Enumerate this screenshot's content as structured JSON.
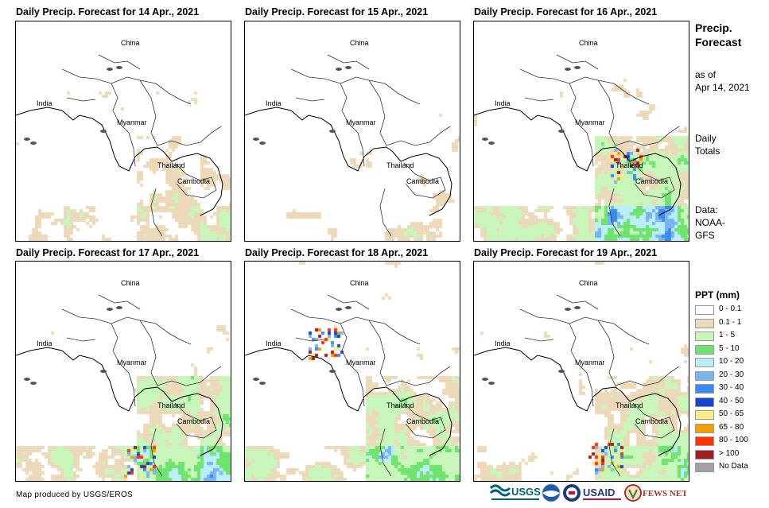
{
  "panels": [
    {
      "title": "Daily Precip. Forecast for 14 Apr., 2021",
      "seed": 11,
      "wet": 0.1,
      "hot": null
    },
    {
      "title": "Daily Precip. Forecast for 15 Apr., 2021",
      "seed": 23,
      "wet": 0.05,
      "hot": null
    },
    {
      "title": "Daily Precip. Forecast for 16 Apr., 2021",
      "seed": 37,
      "wet": 0.25,
      "hot": "thailand"
    },
    {
      "title": "Daily Precip. Forecast for 17 Apr., 2021",
      "seed": 41,
      "wet": 0.2,
      "hot": "south"
    },
    {
      "title": "Daily Precip. Forecast for 18 Apr., 2021",
      "seed": 53,
      "wet": 0.2,
      "hot": "north"
    },
    {
      "title": "Daily Precip. Forecast for 19 Apr., 2021",
      "seed": 67,
      "wet": 0.15,
      "hot": "malaysia"
    }
  ],
  "map_labels": {
    "china": "China",
    "india": "India",
    "myanmar": "Myanmar",
    "thailand": "Thailand",
    "cambodia": "Cambodia"
  },
  "side": {
    "title_line1": "Precip.",
    "title_line2": "Forecast",
    "asof_line1": "as of",
    "asof_line2": "Apr 14, 2021",
    "daily_line1": "Daily",
    "daily_line2": "Totals",
    "data_line1": "Data:",
    "data_line2": "NOAA-",
    "data_line3": "GFS"
  },
  "legend": {
    "title": "PPT (mm)",
    "items": [
      {
        "label": "0 - 0.1",
        "color": "#ffffff"
      },
      {
        "label": "0.1 - 1",
        "color": "#ecd9b9"
      },
      {
        "label": "1 - 5",
        "color": "#c8f5b9"
      },
      {
        "label": "5 - 10",
        "color": "#6ee36e"
      },
      {
        "label": "10 - 20",
        "color": "#b9eefa"
      },
      {
        "label": "20 - 30",
        "color": "#78b4f0"
      },
      {
        "label": "30 - 40",
        "color": "#3c8cf0"
      },
      {
        "label": "40 - 50",
        "color": "#1446d2"
      },
      {
        "label": "50 - 65",
        "color": "#faeb82"
      },
      {
        "label": "65 - 80",
        "color": "#f5a000"
      },
      {
        "label": "80 - 100",
        "color": "#ff3200"
      },
      {
        "label": "> 100",
        "color": "#a01e1e"
      },
      {
        "label": "No Data",
        "color": "#a0a0a0"
      }
    ]
  },
  "footer": "Map produced by USGS/EROS",
  "logos": {
    "usgs": "USGS",
    "usaid": "USAID",
    "fewsnet": "FEWS NET"
  }
}
